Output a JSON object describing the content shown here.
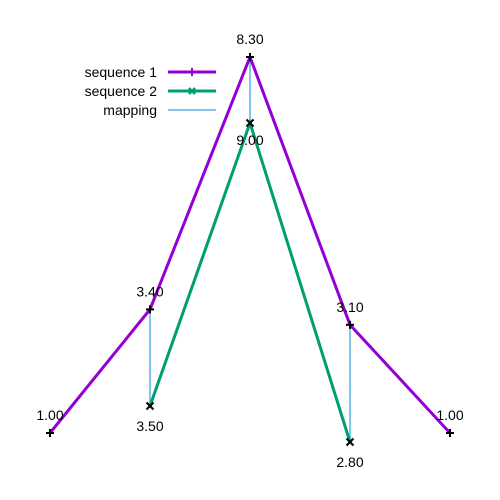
{
  "chart_data": {
    "type": "line",
    "title": "",
    "xlabel": "",
    "ylabel": "",
    "grid": false,
    "legend_position": "top-left",
    "series": [
      {
        "name": "sequence 1",
        "color": "#9400d3",
        "marker": "plus",
        "points": [
          {
            "x": 0,
            "y": 1.0,
            "label": "1.00"
          },
          {
            "x": 1,
            "y": 3.4,
            "label": "3.40"
          },
          {
            "x": 2,
            "y": 8.3,
            "label": "8.30"
          },
          {
            "x": 3,
            "y": 3.1,
            "label": "3.10"
          },
          {
            "x": 4,
            "y": 1.0,
            "label": "1.00"
          }
        ]
      },
      {
        "name": "sequence 2",
        "color": "#009e73",
        "marker": "cross",
        "points": [
          {
            "x": 1,
            "y": 3.5,
            "label": "3.50"
          },
          {
            "x": 2,
            "y": 9.0,
            "label": "9.00"
          },
          {
            "x": 3,
            "y": 2.8,
            "label": "2.80"
          }
        ]
      }
    ],
    "mapping": {
      "name": "mapping",
      "color": "#56b4e9",
      "pairs": [
        [
          1,
          0
        ],
        [
          2,
          1
        ],
        [
          3,
          2
        ]
      ]
    }
  }
}
